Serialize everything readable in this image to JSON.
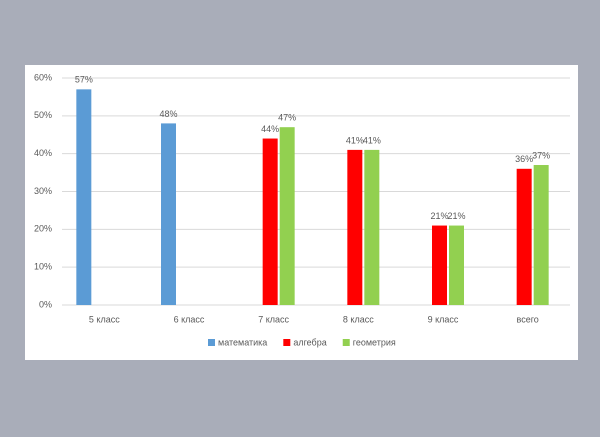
{
  "chart_data": {
    "type": "bar",
    "categories": [
      "5 класс",
      "6 класс",
      "7 класс",
      "8 класс",
      "9 класс",
      "всего"
    ],
    "series": [
      {
        "name": "математика",
        "color": "#5b9bd5",
        "values": [
          57,
          48,
          null,
          null,
          null,
          null
        ],
        "value_labels": [
          "57%",
          "48%",
          null,
          null,
          null,
          null
        ]
      },
      {
        "name": "алгебра",
        "color": "#ff0000",
        "values": [
          null,
          null,
          44,
          41,
          21,
          36
        ],
        "value_labels": [
          null,
          null,
          "44%",
          "41%",
          "21%",
          "36%"
        ]
      },
      {
        "name": "геометрия",
        "color": "#92d050",
        "values": [
          null,
          null,
          47,
          41,
          21,
          37
        ],
        "value_labels": [
          null,
          null,
          "47%",
          "41%",
          "21%",
          "37%"
        ]
      }
    ],
    "ylim": [
      0,
      60
    ],
    "yticks": [
      {
        "value": 0,
        "label": "0%"
      },
      {
        "value": 10,
        "label": "10%"
      },
      {
        "value": 20,
        "label": "20%"
      },
      {
        "value": 30,
        "label": "30%"
      },
      {
        "value": 40,
        "label": "40%"
      },
      {
        "value": 50,
        "label": "50%"
      },
      {
        "value": 60,
        "label": "60%"
      }
    ],
    "grid": true,
    "legend": "bottom"
  }
}
